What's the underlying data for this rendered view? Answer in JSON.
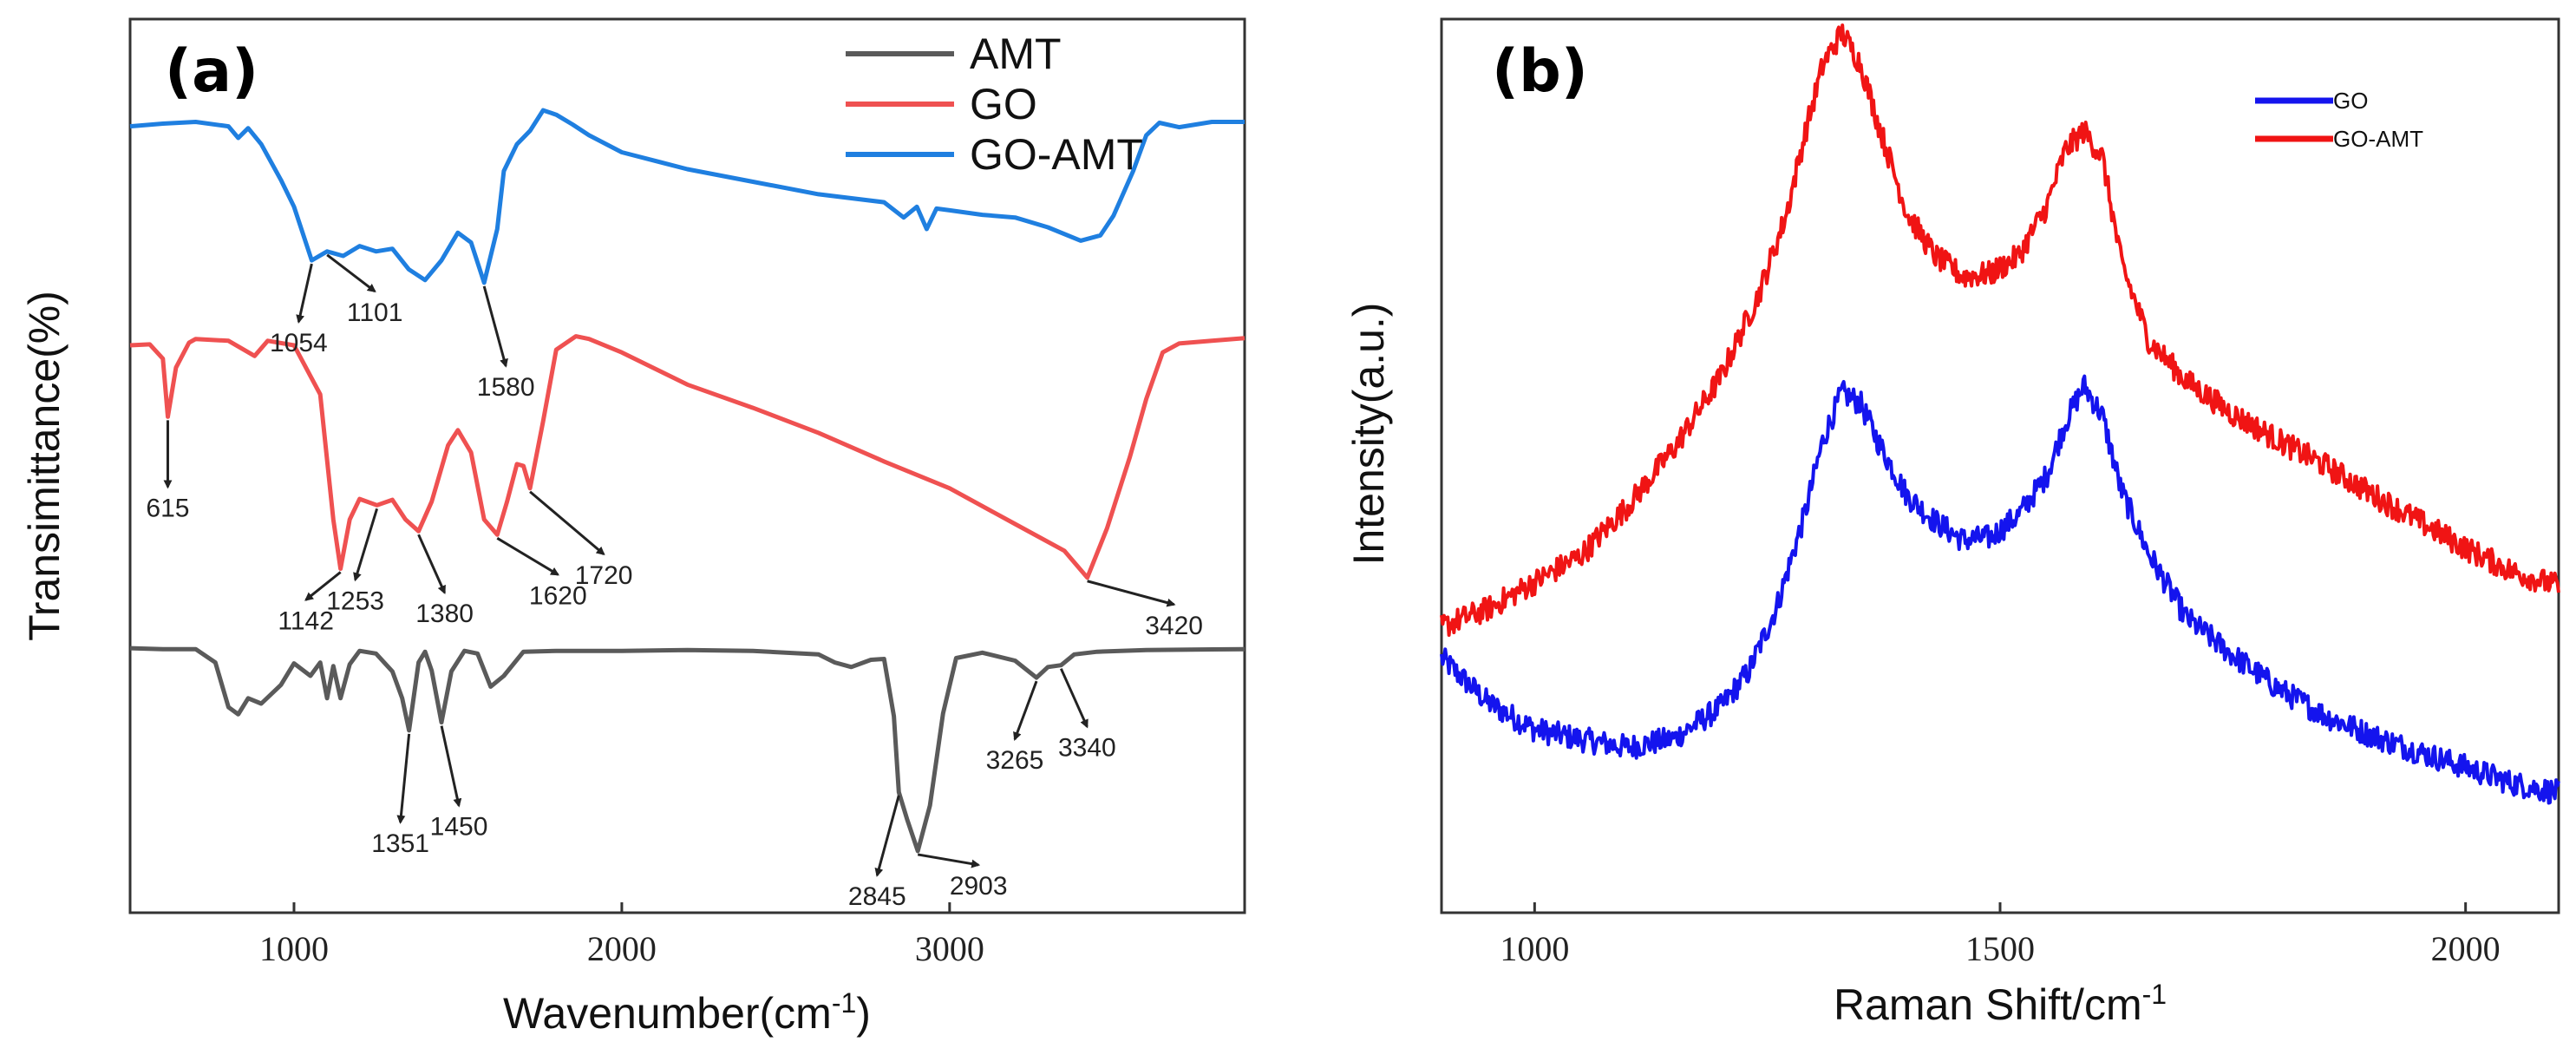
{
  "chart_data": [
    {
      "panel": "(a)",
      "type": "line",
      "xlabel": "Wavenumber(cm",
      "xlabel_sup": "-1",
      "xlabel_end": ")",
      "ylabel": "Transimittance(%)",
      "xlim": [
        500,
        3900
      ],
      "ylim": [
        0,
        100
      ],
      "xticks": [
        1000,
        2000,
        3000
      ],
      "xtick_labels": [
        "1000",
        "2000",
        "3000"
      ],
      "yticks_shown": false,
      "legend": {
        "position": "top-right",
        "entries": [
          "AMT",
          "GO",
          "GO-AMT"
        ]
      },
      "series": [
        {
          "name": "GO-AMT",
          "color": "#1f7fe0",
          "x": [
            500,
            600,
            700,
            800,
            830,
            860,
            900,
            960,
            1000,
            1054,
            1101,
            1150,
            1200,
            1250,
            1300,
            1350,
            1400,
            1450,
            1500,
            1540,
            1580,
            1620,
            1640,
            1680,
            1720,
            1760,
            1800,
            1850,
            1900,
            2000,
            2200,
            2400,
            2600,
            2800,
            2860,
            2900,
            2930,
            2960,
            3000,
            3100,
            3200,
            3300,
            3400,
            3460,
            3500,
            3560,
            3600,
            3640,
            3700,
            3800,
            3900
          ],
          "y": [
            88,
            88.3,
            88.5,
            88,
            86.7,
            87.8,
            86,
            82,
            79,
            73,
            74,
            73.5,
            74.6,
            74,
            74.3,
            72,
            70.8,
            73,
            76.1,
            75,
            70.5,
            76.5,
            83,
            86,
            87.5,
            89.8,
            89.3,
            88.2,
            87,
            85.1,
            83.2,
            81.8,
            80.4,
            79.5,
            77.8,
            79,
            76.5,
            78.8,
            78.6,
            78.1,
            77.8,
            76.7,
            75.2,
            75.8,
            78,
            83,
            87,
            88.4,
            87.9,
            88.5,
            88.5
          ]
        },
        {
          "name": "GO",
          "color": "#ef5151",
          "x": [
            500,
            560,
            600,
            615,
            640,
            680,
            700,
            800,
            880,
            920,
            1000,
            1080,
            1120,
            1142,
            1170,
            1200,
            1253,
            1300,
            1340,
            1380,
            1420,
            1470,
            1500,
            1540,
            1580,
            1620,
            1650,
            1680,
            1700,
            1720,
            1760,
            1800,
            1860,
            1900,
            2000,
            2200,
            2400,
            2600,
            2800,
            3000,
            3200,
            3350,
            3420,
            3480,
            3550,
            3600,
            3650,
            3700,
            3800,
            3900
          ],
          "y": [
            63.5,
            63.6,
            62,
            55.5,
            61,
            63.8,
            64.2,
            64,
            62.3,
            64,
            63.5,
            58,
            44,
            38.5,
            44,
            46.3,
            45.6,
            46.2,
            44,
            42.7,
            46,
            52.3,
            54,
            51.5,
            44,
            42.3,
            46,
            50.2,
            50,
            47.5,
            55,
            63,
            64.5,
            64.2,
            62.7,
            59.1,
            56.5,
            53.7,
            50.5,
            47.5,
            43.5,
            40.5,
            37.5,
            43,
            51,
            57.5,
            62.7,
            63.7,
            64,
            64.3
          ]
        },
        {
          "name": "AMT",
          "color": "#5a5a5a",
          "x": [
            500,
            600,
            700,
            760,
            800,
            830,
            860,
            900,
            960,
            1000,
            1050,
            1080,
            1101,
            1120,
            1142,
            1170,
            1200,
            1250,
            1300,
            1330,
            1351,
            1380,
            1400,
            1420,
            1450,
            1480,
            1520,
            1560,
            1600,
            1640,
            1700,
            1800,
            2000,
            2200,
            2400,
            2600,
            2650,
            2700,
            2760,
            2800,
            2830,
            2845,
            2870,
            2903,
            2940,
            2980,
            3020,
            3100,
            3200,
            3265,
            3300,
            3340,
            3380,
            3450,
            3600,
            3900
          ],
          "y": [
            29.6,
            29.5,
            29.5,
            28,
            23,
            22.2,
            24,
            23.4,
            25.5,
            27.9,
            26.5,
            28,
            24,
            27.6,
            24,
            27.8,
            29.3,
            29,
            27,
            24,
            20.4,
            28,
            29.2,
            27.1,
            21.3,
            27,
            29.3,
            29,
            25.3,
            26.5,
            29.2,
            29.3,
            29.3,
            29.4,
            29.3,
            28.9,
            28,
            27.5,
            28.3,
            28.4,
            22,
            13.5,
            10.5,
            6.9,
            12,
            22.3,
            28.5,
            29.1,
            28.2,
            26.3,
            27.5,
            27.7,
            28.9,
            29.2,
            29.4,
            29.5
          ]
        }
      ],
      "annotations": [
        "1054",
        "1101",
        "1580",
        "615",
        "1142",
        "1253",
        "1380",
        "1620",
        "1720",
        "3420",
        "1351",
        "1450",
        "2845",
        "2903",
        "3265",
        "3340"
      ]
    },
    {
      "panel": "(b)",
      "type": "line",
      "xlabel": "Raman Shift/cm",
      "xlabel_sup": "-1",
      "ylabel": "Intensity(a.u.)",
      "xlim": [
        900,
        2100
      ],
      "ylim": [
        0,
        100
      ],
      "xticks": [
        1000,
        1500,
        2000
      ],
      "xtick_labels": [
        "1000",
        "1500",
        "2000"
      ],
      "yticks_shown": false,
      "legend": {
        "position": "top-right",
        "entries": [
          "GO",
          "GO-AMT"
        ]
      },
      "series": [
        {
          "name": "GO",
          "color": "#1414ee",
          "x": [
            900,
            950,
            1000,
            1050,
            1100,
            1150,
            1200,
            1230,
            1260,
            1290,
            1310,
            1330,
            1350,
            1370,
            1400,
            1430,
            1460,
            1490,
            1520,
            1550,
            1570,
            1590,
            1610,
            1630,
            1660,
            1700,
            1750,
            1800,
            1850,
            1900,
            1950,
            2000,
            2050,
            2100
          ],
          "y": [
            28.5,
            23.5,
            20.5,
            19.4,
            18.5,
            19.5,
            23,
            27,
            34.2,
            44.5,
            53,
            58.2,
            57,
            52.5,
            46.7,
            43.8,
            41.7,
            42,
            44.5,
            48.9,
            54.8,
            59,
            55.6,
            47.3,
            40.1,
            33,
            28.8,
            25,
            22,
            19.8,
            18,
            16.3,
            14.5,
            13.4
          ]
        },
        {
          "name": "GO-AMT",
          "color": "#f01414",
          "x": [
            900,
            950,
            1000,
            1050,
            1100,
            1150,
            1200,
            1240,
            1270,
            1290,
            1310,
            1330,
            1350,
            1370,
            1400,
            1430,
            1460,
            1490,
            1520,
            1550,
            1570,
            1590,
            1610,
            1630,
            1660,
            1700,
            1750,
            1800,
            1850,
            1900,
            1950,
            2000,
            2050,
            2100
          ],
          "y": [
            32,
            34,
            37,
            40,
            45.5,
            52,
            60,
            69,
            78,
            87,
            95,
            98.5,
            95,
            88,
            78.3,
            73.5,
            71.2,
            71.5,
            73.5,
            79,
            85.3,
            87.5,
            84.5,
            72.8,
            64,
            59.5,
            55.8,
            52.8,
            50,
            46.8,
            43.8,
            40.8,
            38.2,
            36.5
          ]
        }
      ]
    }
  ],
  "fig_title_a": "(a)",
  "fig_title_b": "(b)"
}
